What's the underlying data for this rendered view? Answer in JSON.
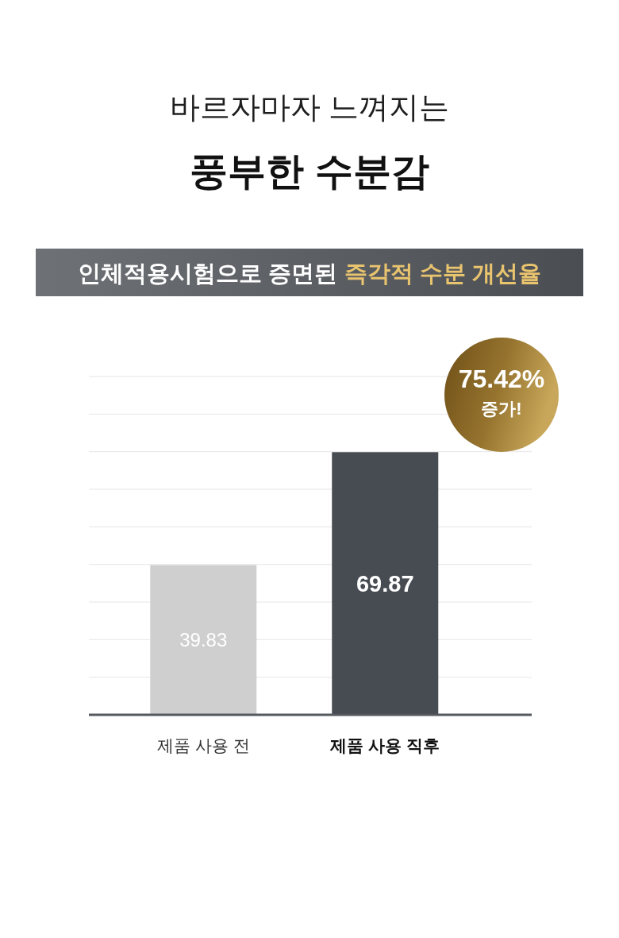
{
  "chart_data": {
    "type": "bar",
    "title": "바르자마자 느껴지는",
    "subtitle": "풍부한 수분감",
    "annotations": [
      "인체적용시험으로 증면된 **즉각적 수분 개선율**",
      "75.42%\n증가!"
    ],
    "categories": [
      "제품 사용 전",
      "제품 사용 직후"
    ],
    "values": [
      39.83,
      69.87
    ],
    "colors": [
      "#cfcfcf",
      "#474b52"
    ],
    "ylim": [
      0,
      90
    ],
    "yticks": [
      {
        "value": 10,
        "label": null
      },
      {
        "value": 20,
        "label": null
      },
      {
        "value": 30,
        "label": null
      },
      {
        "value": 40,
        "label": null
      },
      {
        "value": 50,
        "label": null
      },
      {
        "value": 60,
        "label": null
      },
      {
        "value": 70,
        "label": null
      },
      {
        "value": 80,
        "label": null
      },
      {
        "value": 90,
        "label": null
      }
    ],
    "grid": "y",
    "tick_labels": "x",
    "data_labels": true
  }
}
